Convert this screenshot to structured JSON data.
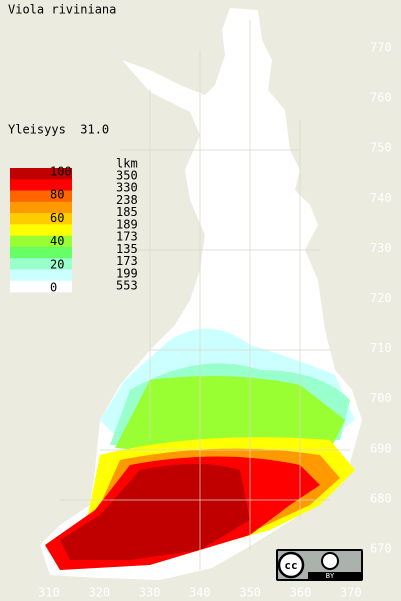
{
  "title": "Viola riviniana",
  "frequency": "Yleisyys  31.0",
  "legend": {
    "header": "lkm",
    "scale_labels": [
      "100",
      "80",
      "60",
      "40",
      "20",
      "0"
    ],
    "colors": [
      "#c00000",
      "#ff0000",
      "#ff6600",
      "#ff9900",
      "#ffcc00",
      "#ffff00",
      "#99ff33",
      "#66ff66",
      "#99ffcc",
      "#ccffff",
      "#ffffff"
    ],
    "counts": [
      350,
      330,
      238,
      185,
      189,
      173,
      135,
      173,
      199,
      553
    ]
  },
  "y_axis_labels": [
    "770",
    "760",
    "750",
    "740",
    "730",
    "720",
    "710",
    "700",
    "690",
    "680",
    "670"
  ],
  "x_axis_labels": [
    "310",
    "320",
    "330",
    "340",
    "350",
    "360",
    "370"
  ],
  "license": {
    "cc": "cc",
    "by": "BY"
  }
}
